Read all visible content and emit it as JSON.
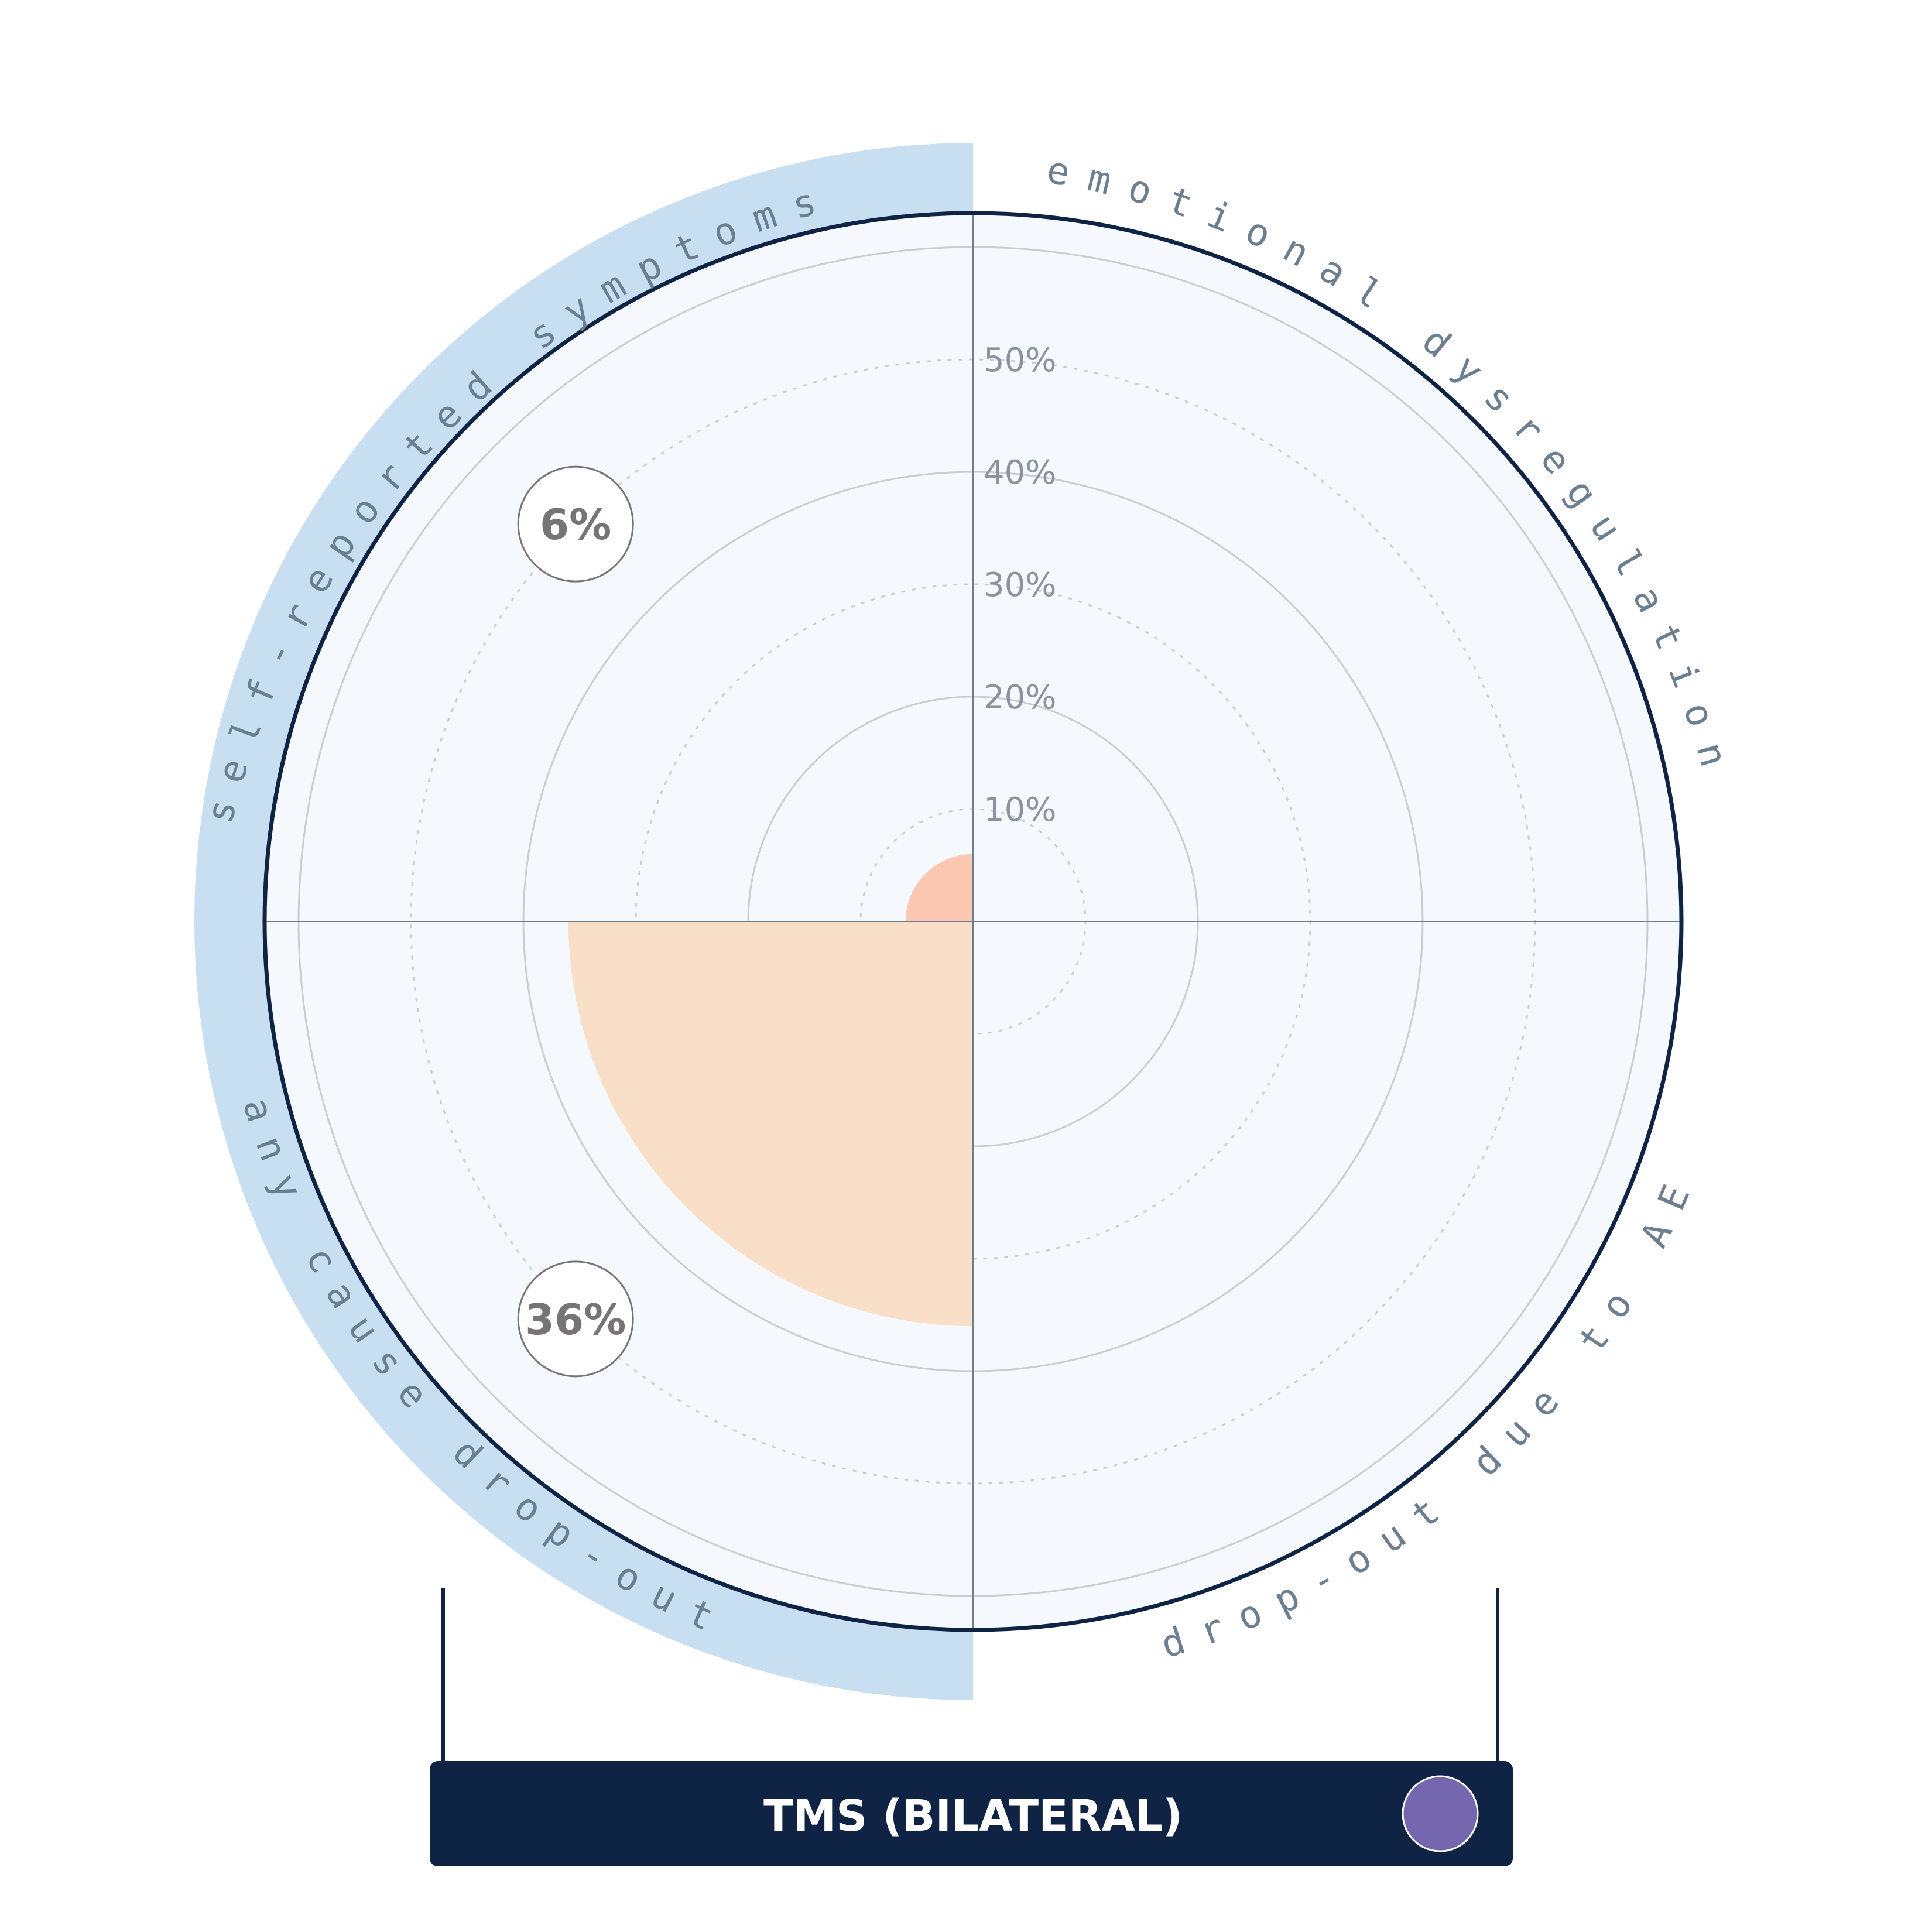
{
  "chart_data": {
    "type": "polar-area",
    "title": "TMS (BILATERAL)",
    "radial_axis": {
      "min": 0,
      "max": 0.6,
      "ticks": [
        0.1,
        0.2,
        0.3,
        0.4,
        0.5
      ],
      "tick_labels": [
        "10%",
        "20%",
        "30%",
        "40%",
        "50%"
      ]
    },
    "categories": [
      "emotional dysregulation",
      "drop-out due to AE",
      "any cause drop-out",
      "self-reported symptoms"
    ],
    "values": [
      null,
      null,
      0.36,
      0.06
    ],
    "value_labels": [
      "",
      "",
      "36%",
      "6%"
    ],
    "highlighted": [
      "any cause drop-out",
      "self-reported symptoms"
    ]
  },
  "title_bar": {
    "label": "TMS (BILATERAL)"
  },
  "colors": {
    "background": "#f5f9fd",
    "outline": "#0f2445",
    "highlight_band": "#c8dff2",
    "wedge_any_cause": "#f9dfc8",
    "wedge_symptoms": "#fcc7b0",
    "title_bar": "#0f2445",
    "marker": "#7467b0",
    "grid": "#c9cdd3",
    "axis": "#6b7f91"
  }
}
